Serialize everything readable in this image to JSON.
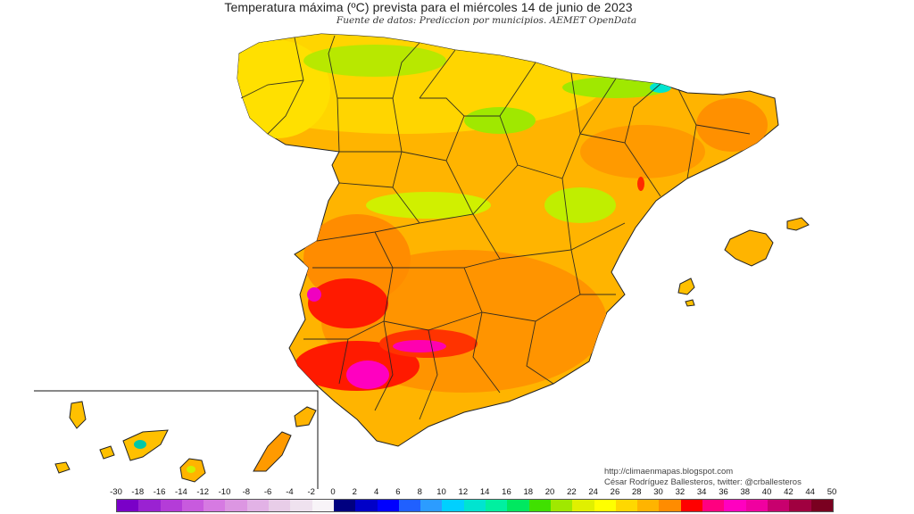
{
  "title": "Temperatura máxima (ºC) prevista para el miércoles 14 de junio de 2023",
  "subtitle": "Fuente de datos: Prediccion por municipios. AEMET OpenData",
  "credits": {
    "url": "http://climaenmapas.blogspot.com",
    "author": "César Rodríguez Ballesteros, twitter: @crballesteros"
  },
  "legend": {
    "labels": [
      "-30",
      "-18",
      "-16",
      "-14",
      "-12",
      "-10",
      "-8",
      "-6",
      "-4",
      "-2",
      "0",
      "2",
      "4",
      "6",
      "8",
      "10",
      "12",
      "14",
      "16",
      "18",
      "20",
      "22",
      "24",
      "26",
      "28",
      "30",
      "32",
      "34",
      "36",
      "38",
      "40",
      "42",
      "44",
      "50"
    ],
    "colors": [
      "#7a00c8",
      "#9a22d2",
      "#b43cd8",
      "#c85ade",
      "#d67ae2",
      "#dc96e2",
      "#e2b2e6",
      "#e8cde8",
      "#efe2ef",
      "#f8f4f8",
      "#000080",
      "#0000c8",
      "#0000ff",
      "#2060ff",
      "#2c9cff",
      "#00d0ff",
      "#00e4d0",
      "#00f0a0",
      "#00e860",
      "#40e000",
      "#a0e800",
      "#e0f000",
      "#ffff00",
      "#ffd800",
      "#ffb400",
      "#ff8c00",
      "#ff0000",
      "#ff0080",
      "#ff00c0",
      "#f000a0",
      "#c8006e",
      "#a00040",
      "#7a0020"
    ]
  },
  "regions": {
    "peninsula": "Peninsula Iberica (Espana)",
    "baleares": "Islas Baleares",
    "canarias": "Islas Canarias"
  }
}
